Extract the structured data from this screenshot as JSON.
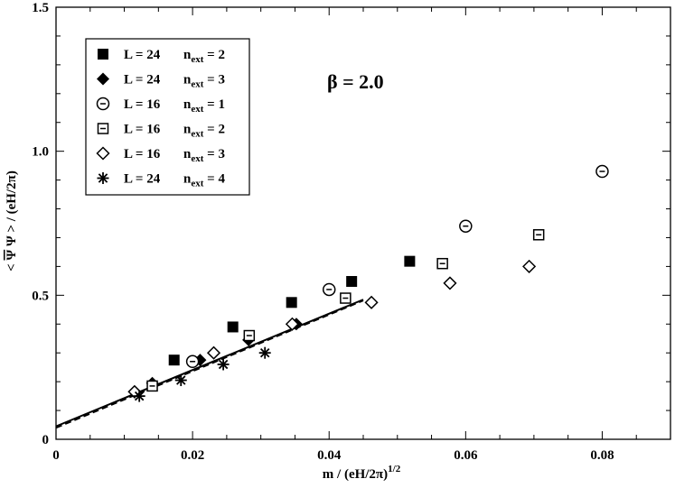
{
  "chart_data": {
    "type": "scatter",
    "title": "",
    "xlabel": "m / (eH/2π)",
    "xlabel_sup": "1/2",
    "ylabel_pre": "< ",
    "ylabel_psibar": "Ψ",
    "ylabel_post": " Ψ > / (eH/2π)",
    "xlim": [
      0,
      0.09
    ],
    "ylim": [
      0,
      1.5
    ],
    "xticks": [
      0,
      0.02,
      0.04,
      0.06,
      0.08
    ],
    "xtick_labels": [
      "0",
      "0.02",
      "0.04",
      "0.06",
      "0.08"
    ],
    "yticks": [
      0,
      0.5,
      1.0,
      1.5
    ],
    "ytick_labels": [
      "0",
      "0.5",
      "1.0",
      "1.5"
    ],
    "annotation": "β = 2.0",
    "legend_position": "top-left",
    "series": [
      {
        "L_text": "L = 24",
        "n_text": "n",
        "n_sub": "ext",
        "n_val": " = 2",
        "marker": "square-filled",
        "x": [
          0.0173,
          0.0259,
          0.0345,
          0.0433,
          0.0518
        ],
        "y": [
          0.275,
          0.39,
          0.475,
          0.548,
          0.618
        ]
      },
      {
        "L_text": "L = 24",
        "n_text": "n",
        "n_sub": "ext",
        "n_val": " = 3",
        "marker": "diamond-filled",
        "x": [
          0.0141,
          0.0211,
          0.0282,
          0.0352
        ],
        "y": [
          0.195,
          0.275,
          0.345,
          0.4
        ]
      },
      {
        "L_text": "L = 16",
        "n_text": "n",
        "n_sub": "ext",
        "n_val": " = 1",
        "marker": "circle-open",
        "x": [
          0.02,
          0.04,
          0.06,
          0.08
        ],
        "y": [
          0.27,
          0.52,
          0.74,
          0.93
        ]
      },
      {
        "L_text": "L = 16",
        "n_text": "n",
        "n_sub": "ext",
        "n_val": " = 2",
        "marker": "square-open",
        "x": [
          0.0141,
          0.0283,
          0.0424,
          0.0566,
          0.0707
        ],
        "y": [
          0.185,
          0.36,
          0.49,
          0.61,
          0.71
        ]
      },
      {
        "L_text": "L = 16",
        "n_text": "n",
        "n_sub": "ext",
        "n_val": " = 3",
        "marker": "diamond-open",
        "x": [
          0.0115,
          0.0231,
          0.0346,
          0.0462,
          0.0577,
          0.0693
        ],
        "y": [
          0.165,
          0.3,
          0.4,
          0.475,
          0.542,
          0.6
        ]
      },
      {
        "L_text": "L = 24",
        "n_text": "n",
        "n_sub": "ext",
        "n_val": " = 4",
        "marker": "star",
        "x": [
          0.0122,
          0.0183,
          0.0245,
          0.0306
        ],
        "y": [
          0.15,
          0.205,
          0.26,
          0.3
        ]
      }
    ],
    "fit_lines": [
      {
        "style": "solid",
        "x": [
          0,
          0.045
        ],
        "y": [
          0.045,
          0.485
        ]
      },
      {
        "style": "dashed",
        "x": [
          0,
          0.045
        ],
        "y": [
          0.04,
          0.482
        ]
      }
    ]
  }
}
